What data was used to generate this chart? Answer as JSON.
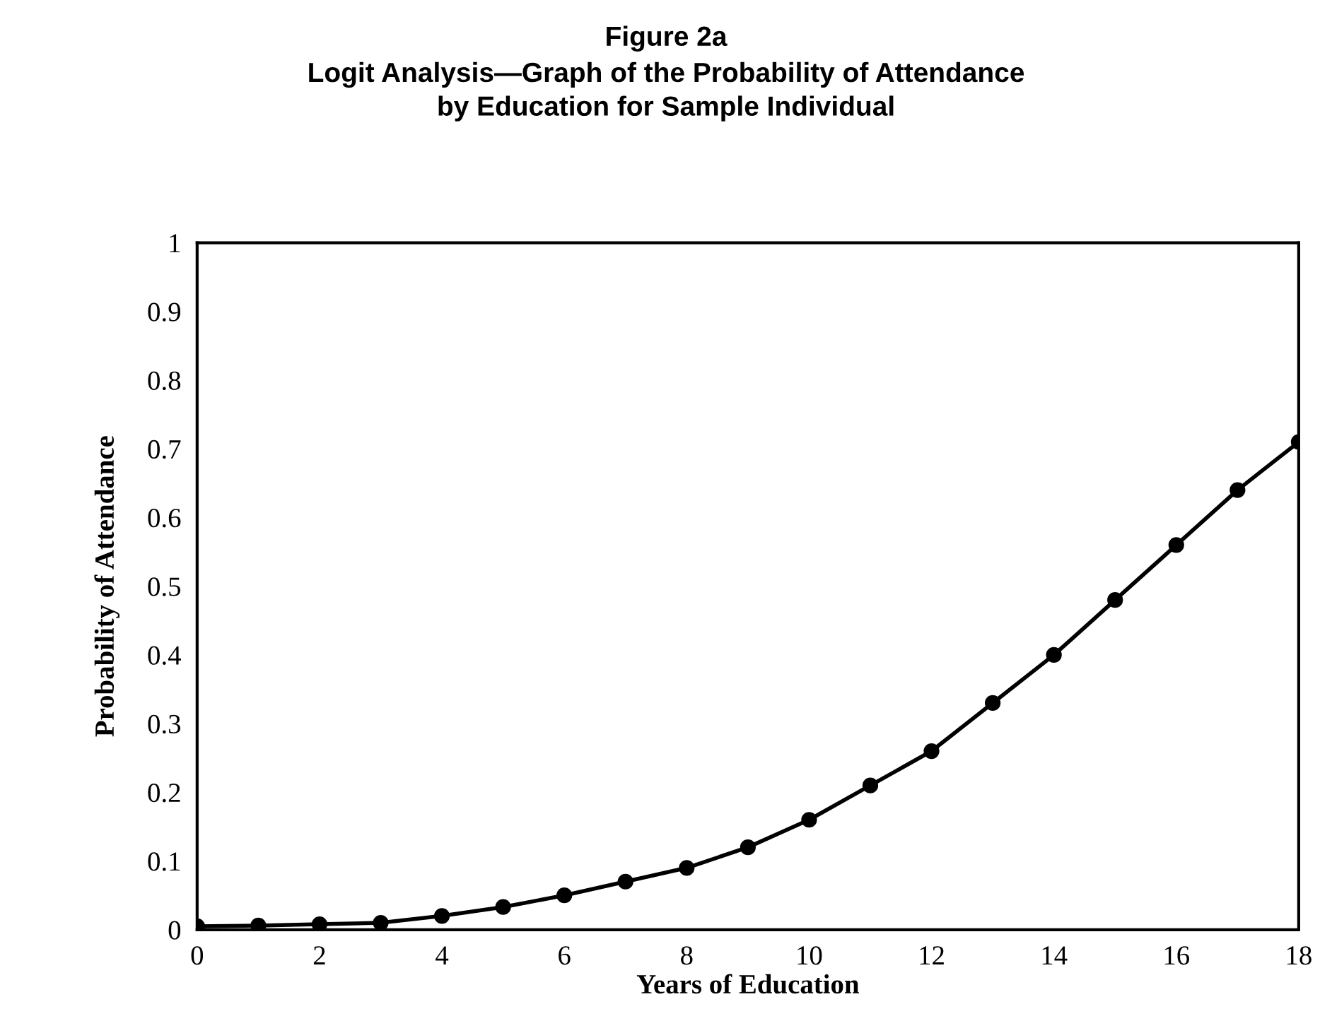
{
  "chart_data": {
    "type": "line",
    "title": "Figure 2a",
    "subtitle": "Logit Analysis—Graph of the Probability of Attendance\nby Education for Sample Individual",
    "xlabel": "Years of Education",
    "ylabel": "Probability of Attendance",
    "x": [
      0,
      1,
      2,
      3,
      4,
      5,
      6,
      7,
      8,
      9,
      10,
      11,
      12,
      13,
      14,
      15,
      16,
      17,
      18
    ],
    "series": [
      {
        "color": "#000000",
        "values": [
          0.005,
          0.006,
          0.008,
          0.01,
          0.02,
          0.033,
          0.05,
          0.07,
          0.09,
          0.12,
          0.16,
          0.21,
          0.26,
          0.33,
          0.4,
          0.48,
          0.56,
          0.64,
          0.71
        ]
      }
    ],
    "xlim": [
      0,
      18
    ],
    "xticks": [
      0,
      2,
      4,
      6,
      8,
      10,
      12,
      14,
      16,
      18
    ],
    "ylim": [
      0,
      1
    ],
    "yticks": [
      0,
      0.1,
      0.2,
      0.3,
      0.4,
      0.5,
      0.6,
      0.7,
      0.8,
      0.9,
      1
    ],
    "marker": "circle",
    "line_style": "solid",
    "grid": false,
    "legend": false
  }
}
